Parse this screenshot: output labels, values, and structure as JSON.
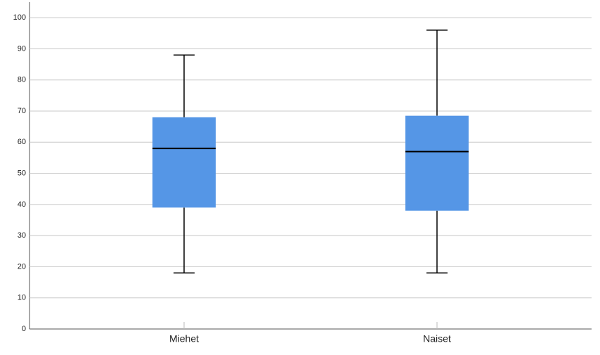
{
  "chart_data": {
    "type": "box",
    "categories": [
      "Miehet",
      "Naiset"
    ],
    "min": [
      18,
      18
    ],
    "q1": [
      39,
      38
    ],
    "median": [
      58,
      57
    ],
    "q3": [
      68,
      68.5
    ],
    "max": [
      88,
      96
    ],
    "color": "#5596e6",
    "ylim": [
      0,
      105
    ],
    "yticks": [
      0,
      10,
      20,
      30,
      40,
      50,
      60,
      70,
      80,
      90,
      100
    ],
    "grid": true
  }
}
